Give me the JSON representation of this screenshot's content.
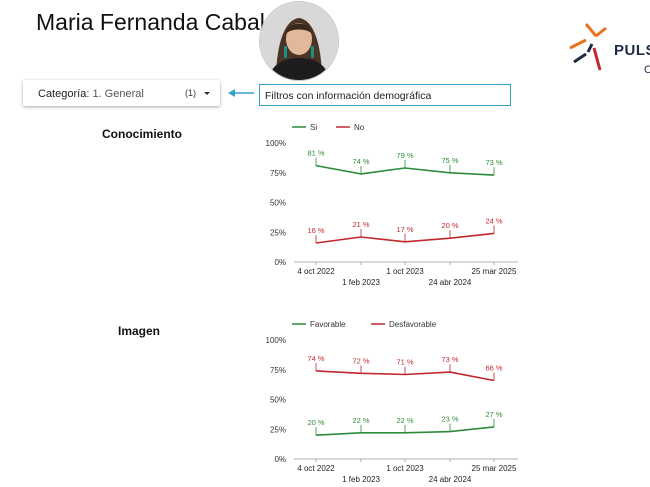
{
  "header": {
    "title": "Maria Fernanda Cabal",
    "logo_text": "PULSO",
    "logo_sub": "C"
  },
  "filter": {
    "label": "Categoría",
    "value": "1. General",
    "count": "(1)"
  },
  "note": "Filtros con información demográfica",
  "colors": {
    "green": "#2e8b3a",
    "red": "#c0282d",
    "accent": "#35a0c8"
  },
  "icons": {
    "dropdown": "caret-down-icon",
    "arrow": "arrow-left-icon",
    "logo": "pulso-logo-icon"
  },
  "sections": [
    {
      "title": "Conocimiento"
    },
    {
      "title": "Imagen"
    }
  ],
  "chart_data": [
    {
      "type": "line",
      "title": "Conocimiento",
      "x": [
        "4 oct 2022",
        "1 feb 2023",
        "1 oct 2023",
        "24 abr 2024",
        "25 mar 2025"
      ],
      "ylim": [
        0,
        100
      ],
      "yticks": [
        "0%",
        "25%",
        "50%",
        "75%",
        "100%"
      ],
      "legend_position": "top-left",
      "grid": false,
      "series": [
        {
          "name": "Si",
          "color": "#2e8b3a",
          "values": [
            81,
            74,
            79,
            75,
            73
          ],
          "labels": [
            "81 %",
            "74 %",
            "79 %",
            "75 %",
            "73 %"
          ]
        },
        {
          "name": "No",
          "color": "#c0282d",
          "values": [
            16,
            21,
            17,
            20,
            24
          ],
          "labels": [
            "16 %",
            "21 %",
            "17 %",
            "20 %",
            "24 %"
          ]
        }
      ]
    },
    {
      "type": "line",
      "title": "Imagen",
      "x": [
        "4 oct 2022",
        "1 feb 2023",
        "1 oct 2023",
        "24 abr 2024",
        "25 mar 2025"
      ],
      "ylim": [
        0,
        100
      ],
      "yticks": [
        "0%",
        "25%",
        "50%",
        "75%",
        "100%"
      ],
      "legend_position": "top-left",
      "grid": false,
      "series": [
        {
          "name": "Favorable",
          "color": "#2e8b3a",
          "values": [
            20,
            22,
            22,
            23,
            27
          ],
          "labels": [
            "20 %",
            "22 %",
            "22 %",
            "23 %",
            "27 %"
          ]
        },
        {
          "name": "Desfavorable",
          "color": "#c0282d",
          "values": [
            74,
            72,
            71,
            73,
            66
          ],
          "labels": [
            "74 %",
            "72 %",
            "71 %",
            "73 %",
            "66 %"
          ]
        }
      ]
    }
  ]
}
